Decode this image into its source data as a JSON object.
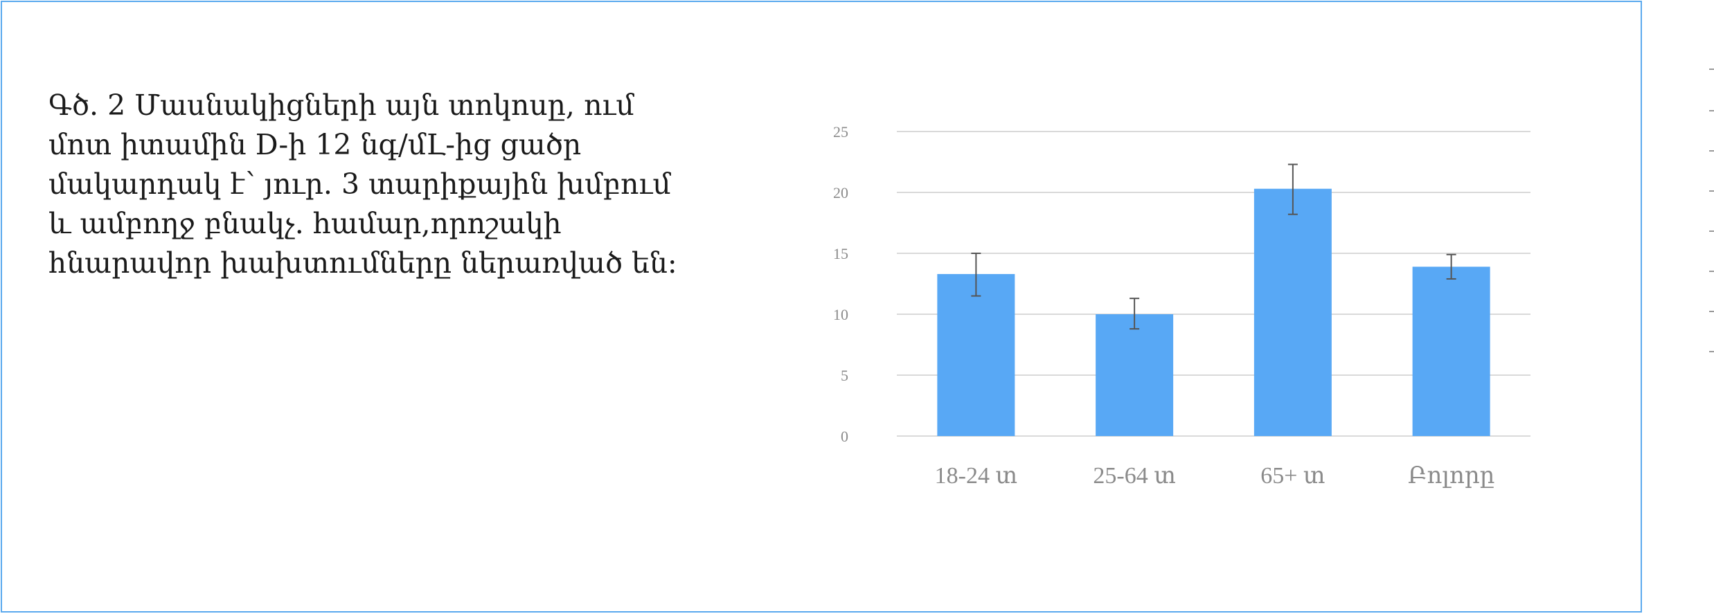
{
  "caption": "Գծ. 2 Մասնակիցների այն տոկոսը, ում մոտ իտամին D-ի 12 նգ/մԼ-ից ցածր մակարդակ է՝ յուր. 3 տարիքային խմբում և ամբողջ բնակչ. համար,որոշակի հնարավոր խախտումները ներառված են:",
  "colors": {
    "bar": "#58a8f5",
    "frame": "#5aa9ee",
    "grid": "#d9d9d9",
    "error": "#555555"
  },
  "chart_data": {
    "type": "bar",
    "categories": [
      "18-24 տ",
      "25-64 տ",
      "65+ տ",
      "Բոլորը"
    ],
    "values": [
      13.3,
      10.0,
      20.3,
      13.9
    ],
    "error_low": [
      11.5,
      8.8,
      18.2,
      12.9
    ],
    "error_high": [
      15.0,
      11.3,
      22.3,
      14.9
    ],
    "ylim": [
      0,
      25
    ],
    "yticks": [
      0,
      5,
      10,
      15,
      20,
      25
    ],
    "grid": true,
    "title": "",
    "xlabel": "",
    "ylabel": ""
  }
}
